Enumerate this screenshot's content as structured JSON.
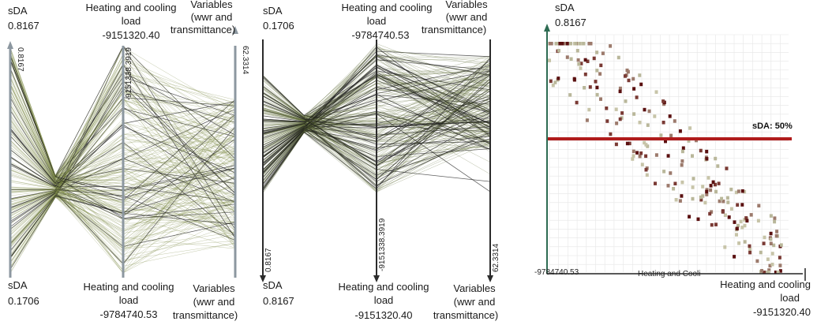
{
  "chart_data": [
    {
      "type": "parallel-coordinates",
      "axes": [
        {
          "name": "sDA",
          "top": "0.8167",
          "bottom": "0.1706",
          "top_tick": "0.8167"
        },
        {
          "name": "Heating and cooling load",
          "name_lines": [
            "Heating and cooling",
            "load"
          ],
          "top": "-9151320.40",
          "bottom": "-9784740.53",
          "top_tick": "-9151338.3919"
        },
        {
          "name": "Variables (wwr and transmittance)",
          "name_lines": [
            "Variables",
            "(wwr and",
            "transmittance)"
          ],
          "top_tick": "62.3314"
        }
      ],
      "line_color": "#7d8a45",
      "highlight_color": "#1c1c1c"
    },
    {
      "type": "parallel-coordinates",
      "axes": [
        {
          "name": "sDA",
          "top": "0.1706",
          "bottom": "0.8167",
          "bottom_tick": "0.8167"
        },
        {
          "name": "Heating and cooling load",
          "name_lines": [
            "Heating and cooling",
            "load"
          ],
          "top": "-9784740.53",
          "bottom": "-9151320.40",
          "bottom_tick": "-9151338.3919"
        },
        {
          "name": "Variables (wwr and transmittance)",
          "name_lines": [
            "Variables",
            "(wwr and",
            "transmittance)"
          ],
          "bottom_tick": "62.3314"
        }
      ],
      "line_color": "#5d6b35",
      "highlight_color": "#1c1c1c"
    },
    {
      "type": "scatter",
      "ylabel": "sDA",
      "y_top": "0.8167",
      "x_origin": "-9784740.53",
      "xlabel_fragment": "Heating and Cooli",
      "x_end_label": [
        "Heating and cooling",
        "load"
      ],
      "x_end_value": "-9151320.40",
      "ylim": [
        0.1706,
        0.8167
      ],
      "xlim": [
        -9784740.53,
        -9151320.4
      ],
      "threshold": {
        "label": "sDA: 50%",
        "value": 0.5,
        "color": "#b01c1c"
      },
      "point_colors": [
        "#5a1010",
        "#7a3a34",
        "#9c7a6c",
        "#b9b79a",
        "#c7c4a8"
      ]
    }
  ]
}
